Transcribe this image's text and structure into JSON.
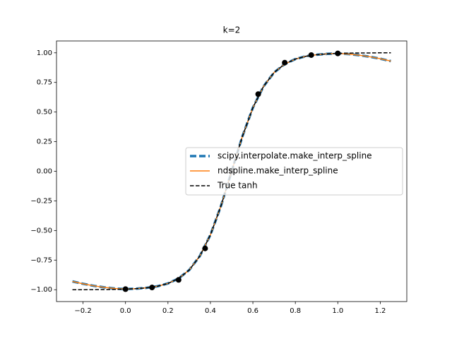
{
  "chart_data": {
    "type": "line",
    "title": "k=2",
    "x": [
      -0.25,
      -0.2,
      -0.15,
      -0.1,
      -0.05,
      0,
      0.05,
      0.1,
      0.15,
      0.2,
      0.25,
      0.3,
      0.35,
      0.4,
      0.45,
      0.5,
      0.55,
      0.6,
      0.65,
      0.7,
      0.75,
      0.8,
      0.85,
      0.9,
      0.95,
      1,
      1.05,
      1.1,
      1.15,
      1.2,
      1.25
    ],
    "series": [
      {
        "name": "scipy.interpolate.make_interp_spline",
        "color": "#1f77b4",
        "style": "dashed-thick",
        "values": [
          -0.93,
          -0.95,
          -0.967,
          -0.98,
          -0.99,
          -0.995,
          -0.991,
          -0.984,
          -0.971,
          -0.947,
          -0.905,
          -0.834,
          -0.716,
          -0.537,
          -0.291,
          0,
          0.291,
          0.537,
          0.716,
          0.834,
          0.905,
          0.947,
          0.971,
          0.984,
          0.991,
          0.995,
          0.99,
          0.98,
          0.967,
          0.95,
          0.93
        ]
      },
      {
        "name": "ndspline.make_interp_spline",
        "color": "#ff7f0e",
        "style": "solid",
        "values": [
          -0.93,
          -0.95,
          -0.967,
          -0.98,
          -0.99,
          -0.995,
          -0.991,
          -0.984,
          -0.971,
          -0.947,
          -0.905,
          -0.834,
          -0.716,
          -0.537,
          -0.291,
          0,
          0.291,
          0.537,
          0.716,
          0.834,
          0.905,
          0.947,
          0.971,
          0.984,
          0.991,
          0.995,
          0.99,
          0.98,
          0.967,
          0.95,
          0.93
        ]
      },
      {
        "name": "True tanh",
        "color": "#000000",
        "style": "dashed",
        "values": [
          -1.0,
          -1.0,
          -0.999,
          -0.999,
          -0.997,
          -0.995,
          -0.991,
          -0.984,
          -0.971,
          -0.947,
          -0.905,
          -0.834,
          -0.716,
          -0.537,
          -0.291,
          0,
          0.291,
          0.537,
          0.716,
          0.834,
          0.905,
          0.947,
          0.971,
          0.984,
          0.991,
          0.995,
          0.997,
          0.999,
          0.999,
          1.0,
          1.0
        ]
      }
    ],
    "points": {
      "color": "#000000",
      "x": [
        0,
        0.125,
        0.25,
        0.375,
        0.5,
        0.625,
        0.75,
        0.875,
        1
      ],
      "values": [
        -0.995,
        -0.981,
        -0.917,
        -0.651,
        0,
        0.651,
        0.917,
        0.981,
        0.995
      ]
    },
    "xlim": [
      -0.325,
      1.325
    ],
    "ylim": [
      -1.1,
      1.1
    ],
    "xticks": [
      {
        "value": -0.2,
        "label": "−0.2"
      },
      {
        "value": 0,
        "label": "0.0"
      },
      {
        "value": 0.2,
        "label": "0.2"
      },
      {
        "value": 0.4,
        "label": "0.4"
      },
      {
        "value": 0.6,
        "label": "0.6"
      },
      {
        "value": 0.8,
        "label": "0.8"
      },
      {
        "value": 1,
        "label": "1.0"
      },
      {
        "value": 1.2,
        "label": "1.2"
      }
    ],
    "yticks": [
      {
        "value": -1,
        "label": "−1.00"
      },
      {
        "value": -0.75,
        "label": "−0.75"
      },
      {
        "value": -0.5,
        "label": "−0.50"
      },
      {
        "value": -0.25,
        "label": "−0.25"
      },
      {
        "value": 0,
        "label": "0.00"
      },
      {
        "value": 0.25,
        "label": "0.25"
      },
      {
        "value": 0.5,
        "label": "0.50"
      },
      {
        "value": 0.75,
        "label": "0.75"
      },
      {
        "value": 1,
        "label": "1.00"
      }
    ],
    "legend": "center right"
  }
}
